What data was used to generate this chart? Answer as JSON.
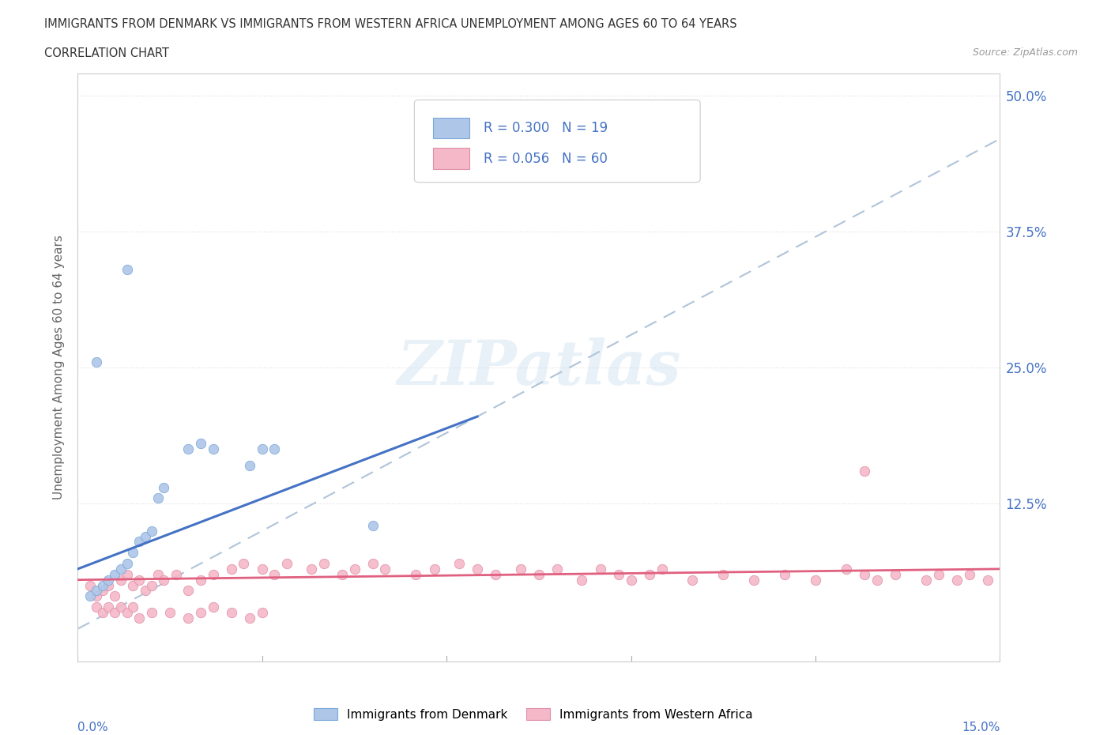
{
  "title_line1": "IMMIGRANTS FROM DENMARK VS IMMIGRANTS FROM WESTERN AFRICA UNEMPLOYMENT AMONG AGES 60 TO 64 YEARS",
  "title_line2": "CORRELATION CHART",
  "source": "Source: ZipAtlas.com",
  "ylabel": "Unemployment Among Ages 60 to 64 years",
  "yticks": [
    0.0,
    0.125,
    0.25,
    0.375,
    0.5
  ],
  "ytick_labels": [
    "",
    "12.5%",
    "25.0%",
    "37.5%",
    "50.0%"
  ],
  "xlim": [
    0.0,
    0.15
  ],
  "ylim": [
    -0.02,
    0.52
  ],
  "denmark_R": 0.3,
  "denmark_N": 19,
  "western_africa_R": 0.056,
  "western_africa_N": 60,
  "denmark_color": "#aec6e8",
  "western_africa_color": "#f4b8c8",
  "denmark_line_color": "#4472c4",
  "western_africa_line_color": "#e06080",
  "dashed_line_color": "#b0c4d8",
  "watermark": "ZIPatlas",
  "denmark_x": [
    0.002,
    0.003,
    0.004,
    0.005,
    0.006,
    0.007,
    0.008,
    0.009,
    0.01,
    0.011,
    0.012,
    0.013,
    0.014,
    0.018,
    0.02,
    0.022,
    0.028,
    0.03,
    0.032
  ],
  "denmark_y": [
    0.04,
    0.045,
    0.05,
    0.055,
    0.06,
    0.065,
    0.07,
    0.08,
    0.09,
    0.095,
    0.1,
    0.13,
    0.14,
    0.175,
    0.18,
    0.175,
    0.16,
    0.175,
    0.175
  ],
  "denmark_outlier_x": [
    0.008
  ],
  "denmark_outlier_y": [
    0.34
  ],
  "denmark_outlier2_x": [
    0.003
  ],
  "denmark_outlier2_y": [
    0.255
  ],
  "denmark_single_x": [
    0.048
  ],
  "denmark_single_y": [
    0.105
  ],
  "wa_x": [
    0.002,
    0.003,
    0.004,
    0.005,
    0.006,
    0.007,
    0.008,
    0.009,
    0.01,
    0.011,
    0.012,
    0.013,
    0.014,
    0.016,
    0.018,
    0.02,
    0.022,
    0.025,
    0.027,
    0.03,
    0.032,
    0.034,
    0.038,
    0.04,
    0.043,
    0.045,
    0.048,
    0.05,
    0.055,
    0.058,
    0.062,
    0.065,
    0.068,
    0.072,
    0.075,
    0.078,
    0.082,
    0.085,
    0.088,
    0.09,
    0.093,
    0.095,
    0.1,
    0.105,
    0.11,
    0.115,
    0.12,
    0.125,
    0.128,
    0.13,
    0.133,
    0.138,
    0.14,
    0.143,
    0.145,
    0.148
  ],
  "wa_y": [
    0.05,
    0.04,
    0.045,
    0.05,
    0.04,
    0.055,
    0.06,
    0.05,
    0.055,
    0.045,
    0.05,
    0.06,
    0.055,
    0.06,
    0.045,
    0.055,
    0.06,
    0.065,
    0.07,
    0.065,
    0.06,
    0.07,
    0.065,
    0.07,
    0.06,
    0.065,
    0.07,
    0.065,
    0.06,
    0.065,
    0.07,
    0.065,
    0.06,
    0.065,
    0.06,
    0.065,
    0.055,
    0.065,
    0.06,
    0.055,
    0.06,
    0.065,
    0.055,
    0.06,
    0.055,
    0.06,
    0.055,
    0.065,
    0.06,
    0.055,
    0.06,
    0.055,
    0.06,
    0.055,
    0.06,
    0.055
  ],
  "wa_outlier_x": [
    0.128
  ],
  "wa_outlier_y": [
    0.155
  ],
  "wa_below_x": [
    0.003,
    0.004,
    0.005,
    0.006,
    0.007,
    0.008,
    0.009,
    0.01,
    0.012,
    0.015,
    0.018,
    0.02,
    0.022,
    0.025,
    0.028,
    0.03
  ],
  "wa_below_y": [
    0.03,
    0.025,
    0.03,
    0.025,
    0.03,
    0.025,
    0.03,
    0.02,
    0.025,
    0.025,
    0.02,
    0.025,
    0.03,
    0.025,
    0.02,
    0.025
  ],
  "denmark_line_x0": 0.0,
  "denmark_line_y0": 0.065,
  "denmark_line_x1": 0.065,
  "denmark_line_y1": 0.205,
  "wa_line_x0": 0.0,
  "wa_line_y0": 0.055,
  "wa_line_x1": 0.15,
  "wa_line_y1": 0.065,
  "dashed_line_x0": 0.0,
  "dashed_line_y0": 0.01,
  "dashed_line_x1": 0.15,
  "dashed_line_y1": 0.46
}
